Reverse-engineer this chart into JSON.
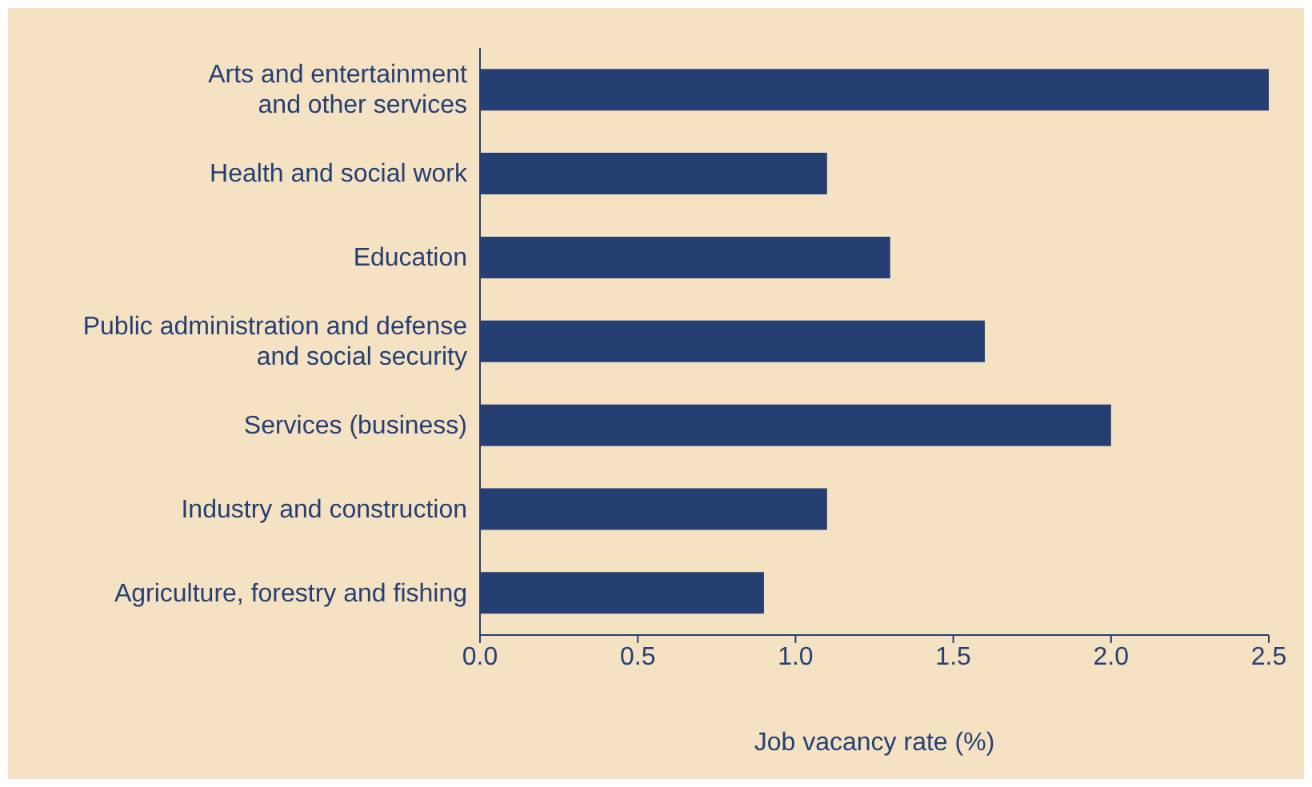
{
  "chart_data": {
    "type": "bar",
    "orientation": "horizontal",
    "xlabel": "Job vacancy rate (%)",
    "categories": [
      "Arts and entertainment\nand other services",
      "Health and social work",
      "Education",
      "Public administration and defense\nand social security",
      "Services (business)",
      "Industry and construction",
      "Agriculture, forestry and fishing"
    ],
    "values": [
      2.5,
      1.1,
      1.3,
      1.6,
      2.0,
      1.1,
      0.9
    ],
    "color": "#253f73",
    "xlim": [
      0,
      2.5
    ],
    "xticks": [
      {
        "value": 0,
        "label": "0.0"
      },
      {
        "value": 0.5,
        "label": "0.5"
      },
      {
        "value": 1,
        "label": "1.0"
      },
      {
        "value": 1.5,
        "label": "1.5"
      },
      {
        "value": 2,
        "label": "2.0"
      },
      {
        "value": 2.5,
        "label": "2.5"
      }
    ],
    "grid": false,
    "legend": false
  }
}
